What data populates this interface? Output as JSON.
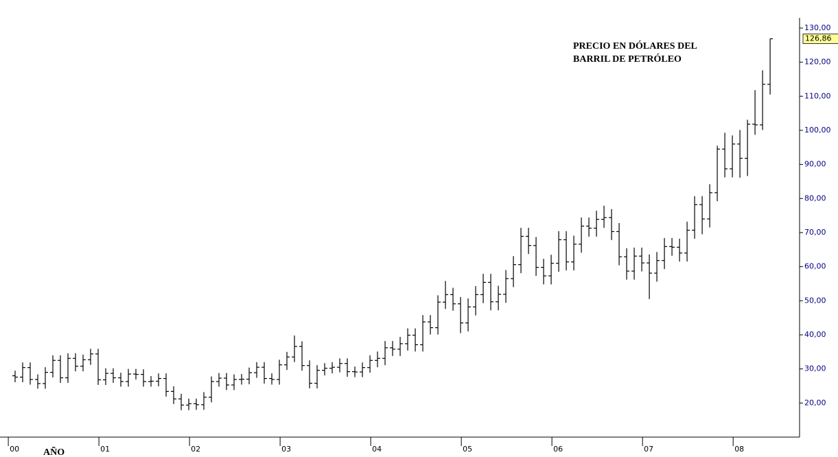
{
  "chart_data": {
    "type": "ohlc",
    "title": [
      "PRECIO EN DÓLARES DEL",
      "BARRIL DE PETRÓLEO"
    ],
    "x_label": "AÑO",
    "color": "#000000",
    "x": [
      0,
      1,
      2,
      3,
      4,
      5,
      6,
      7,
      8,
      9,
      10,
      11,
      12,
      13,
      14,
      15,
      16,
      17,
      18,
      19,
      20,
      21,
      22,
      23,
      24,
      25,
      26,
      27,
      28,
      29,
      30,
      31,
      32,
      33,
      34,
      35,
      36,
      37,
      38,
      39,
      40,
      41,
      42,
      43,
      44,
      45,
      46,
      47,
      48,
      49,
      50,
      51,
      52,
      53,
      54,
      55,
      56,
      57,
      58,
      59,
      60,
      61,
      62,
      63,
      64,
      65,
      66,
      67,
      68,
      69,
      70,
      71,
      72,
      73,
      74,
      75,
      76,
      77,
      78,
      79,
      80,
      81,
      82,
      83,
      84,
      85,
      86,
      87,
      88,
      89,
      90,
      91,
      92,
      93,
      94,
      95,
      96,
      97,
      98,
      99,
      100
    ],
    "open": [
      28.0,
      27.6,
      30.4,
      26.9,
      25.7,
      29.0,
      32.5,
      27.4,
      33.1,
      30.8,
      32.7,
      34.4,
      26.8,
      28.7,
      27.4,
      26.3,
      28.5,
      28.4,
      26.3,
      26.4,
      27.2,
      23.4,
      21.2,
      19.4,
      19.8,
      19.5,
      21.7,
      26.3,
      27.3,
      25.3,
      26.9,
      27.0,
      28.9,
      30.5,
      27.2,
      26.9,
      31.2,
      33.5,
      36.6,
      31.0,
      25.8,
      29.6,
      30.2,
      30.5,
      31.6,
      29.2,
      29.1,
      30.4,
      32.5,
      33.1,
      36.2,
      35.8,
      37.4,
      39.9,
      37.1,
      43.8,
      42.1,
      49.6,
      51.8,
      49.1,
      43.5,
      48.2,
      51.8,
      55.4,
      49.7,
      51.9,
      56.5,
      60.6,
      68.9,
      66.2,
      59.8,
      57.3,
      61.0,
      67.9,
      61.4,
      66.6,
      71.9,
      71.3,
      73.9,
      74.4,
      70.3,
      62.9,
      58.7,
      63.1,
      61.1,
      58.1,
      61.8,
      65.9,
      65.7,
      64.0,
      70.7,
      78.2,
      74.0,
      81.7,
      94.5,
      88.7,
      95.98,
      91.8,
      101.8,
      101.6,
      113.5
    ],
    "high": [
      29.5,
      31.9,
      31.9,
      28.4,
      30.5,
      34.0,
      34.0,
      34.6,
      34.6,
      34.2,
      35.9,
      35.9,
      30.2,
      30.2,
      28.9,
      30.0,
      30.0,
      29.9,
      27.9,
      28.7,
      28.7,
      24.9,
      22.7,
      21.3,
      21.3,
      23.2,
      27.8,
      28.8,
      28.8,
      28.4,
      28.5,
      30.4,
      32.0,
      32.0,
      28.7,
      32.7,
      35.0,
      39.8,
      38.1,
      32.5,
      31.1,
      31.7,
      32.0,
      33.1,
      33.1,
      30.7,
      31.9,
      34.0,
      35.1,
      38.2,
      38.2,
      39.4,
      41.9,
      41.9,
      45.8,
      45.8,
      51.6,
      55.8,
      53.8,
      51.1,
      50.7,
      54.3,
      57.9,
      57.9,
      54.4,
      59.0,
      63.1,
      71.4,
      71.4,
      68.7,
      62.3,
      63.5,
      70.4,
      70.4,
      69.1,
      74.4,
      74.4,
      76.4,
      77.9,
      76.9,
      72.8,
      65.4,
      65.6,
      65.6,
      63.6,
      64.3,
      68.4,
      68.4,
      68.2,
      73.2,
      80.7,
      80.7,
      84.2,
      95.5,
      99.3,
      98.5,
      100.1,
      103.1,
      111.8,
      117.6,
      126.86
    ],
    "low": [
      26.1,
      26.1,
      25.4,
      24.2,
      24.2,
      27.5,
      25.9,
      25.9,
      29.3,
      29.3,
      31.2,
      25.3,
      25.3,
      25.9,
      24.8,
      24.8,
      26.9,
      24.8,
      24.8,
      24.9,
      21.9,
      19.7,
      17.9,
      17.9,
      18.0,
      18.0,
      20.2,
      24.8,
      23.8,
      23.8,
      25.4,
      25.5,
      27.4,
      25.7,
      25.4,
      25.4,
      29.7,
      32.0,
      29.5,
      24.3,
      24.3,
      28.1,
      28.7,
      29.0,
      27.7,
      27.6,
      27.6,
      28.9,
      30.5,
      31.1,
      33.8,
      33.8,
      35.4,
      35.1,
      35.1,
      40.1,
      40.1,
      47.6,
      47.1,
      40.5,
      41.0,
      45.7,
      49.3,
      47.2,
      47.2,
      49.4,
      54.0,
      58.1,
      63.7,
      57.3,
      54.8,
      54.8,
      58.5,
      58.9,
      58.9,
      64.1,
      68.8,
      68.8,
      71.4,
      67.8,
      60.4,
      56.2,
      56.2,
      58.6,
      50.5,
      55.6,
      59.3,
      63.2,
      61.5,
      61.5,
      68.2,
      69.5,
      71.5,
      79.2,
      86.2,
      86.2,
      86.1,
      86.6,
      98.7,
      100.1,
      110.5
    ],
    "close": [
      27.6,
      30.4,
      26.9,
      25.7,
      29.0,
      32.5,
      27.4,
      33.1,
      30.8,
      32.7,
      34.4,
      26.8,
      28.7,
      27.4,
      26.3,
      28.5,
      28.4,
      26.3,
      26.4,
      27.2,
      23.4,
      21.2,
      19.4,
      19.8,
      19.5,
      21.7,
      26.3,
      27.3,
      25.3,
      26.9,
      27.0,
      28.9,
      30.5,
      27.2,
      26.9,
      31.2,
      33.5,
      36.6,
      31.0,
      25.8,
      29.6,
      30.2,
      30.5,
      31.6,
      29.2,
      29.1,
      30.4,
      32.5,
      33.1,
      36.2,
      35.8,
      37.4,
      39.9,
      37.1,
      43.8,
      42.1,
      49.6,
      51.8,
      49.1,
      43.5,
      48.2,
      51.8,
      55.4,
      49.7,
      51.9,
      56.5,
      60.6,
      68.9,
      66.2,
      59.8,
      57.3,
      61.0,
      67.9,
      61.4,
      66.6,
      71.9,
      71.3,
      73.9,
      74.4,
      70.3,
      62.9,
      58.7,
      63.1,
      61.1,
      58.1,
      61.8,
      65.9,
      65.7,
      64.0,
      70.7,
      78.2,
      74.0,
      81.7,
      94.5,
      88.7,
      95.98,
      91.8,
      101.8,
      101.6,
      113.5,
      126.86
    ],
    "last_value_label": "126,86",
    "xlim": [
      -2,
      103.9
    ],
    "xticks": [
      {
        "value": -0.9,
        "label": "00"
      },
      {
        "value": 11.1,
        "label": "01"
      },
      {
        "value": 23.1,
        "label": "02"
      },
      {
        "value": 35.1,
        "label": "03"
      },
      {
        "value": 47.1,
        "label": "04"
      },
      {
        "value": 59.1,
        "label": "05"
      },
      {
        "value": 71.1,
        "label": "06"
      },
      {
        "value": 83.1,
        "label": "07"
      },
      {
        "value": 95.1,
        "label": "08"
      }
    ],
    "ylim": [
      10,
      133
    ],
    "yticks": [
      {
        "value": 20,
        "label": "20,00"
      },
      {
        "value": 30,
        "label": "30,00"
      },
      {
        "value": 40,
        "label": "40,00"
      },
      {
        "value": 50,
        "label": "50,00"
      },
      {
        "value": 60,
        "label": "60,00"
      },
      {
        "value": 70,
        "label": "70,00"
      },
      {
        "value": 80,
        "label": "80,00"
      },
      {
        "value": 90,
        "label": "90,00"
      },
      {
        "value": 100,
        "label": "100,00"
      },
      {
        "value": 110,
        "label": "110,00"
      },
      {
        "value": 120,
        "label": "120,00"
      },
      {
        "value": 130,
        "label": "130,00"
      }
    ]
  }
}
